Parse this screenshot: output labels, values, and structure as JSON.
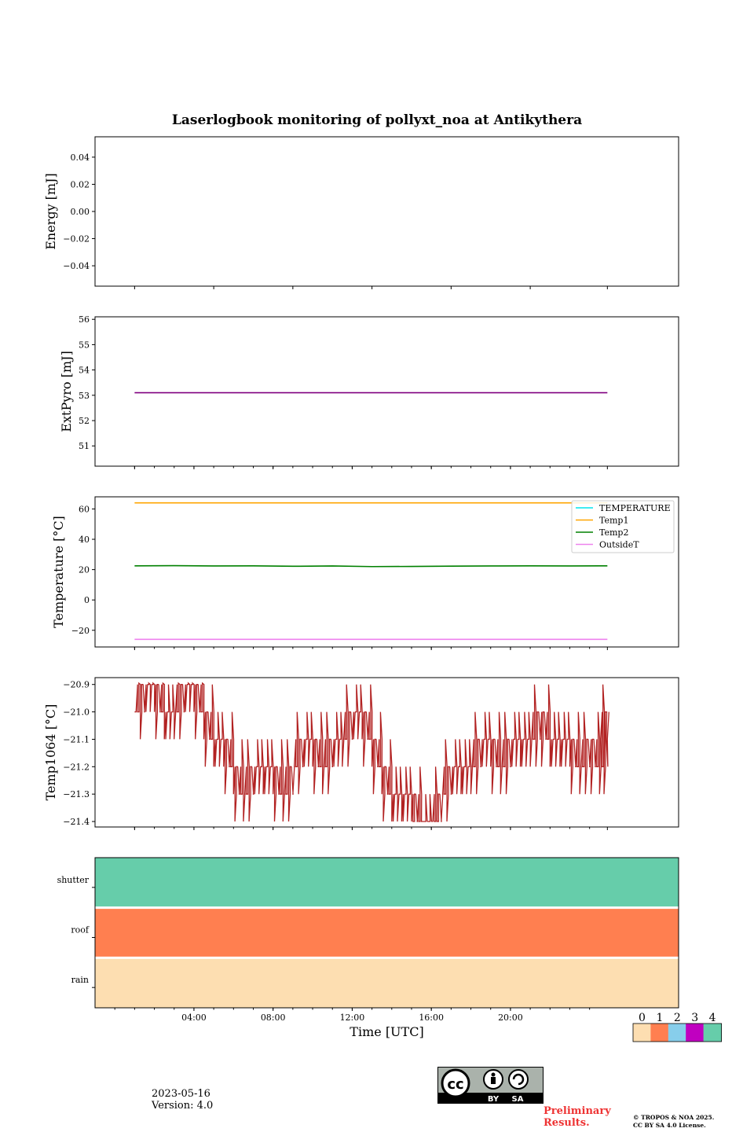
{
  "title": "Laserlogbook monitoring of pollyxt_noa at Antikythera",
  "footer": {
    "date": "2023-05-16",
    "version": "Version: 4.0",
    "preliminary_line1": "Preliminary",
    "preliminary_line2": "Results.",
    "copyright_line1": "© TROPOS & NOA 2025.",
    "copyright_line2": "CC BY SA 4.0 License.",
    "license_badge": {
      "by": "BY",
      "sa": "SA",
      "icon": "cc-by-sa-icon"
    }
  },
  "chart_data": [
    {
      "type": "line",
      "ylabel": "Energy [mJ]",
      "ylim": [
        -0.055,
        0.055
      ],
      "yticks": [
        0.04,
        0.02,
        0.0,
        -0.02,
        -0.04
      ],
      "ytick_labels": [
        "0.04",
        "0.02",
        "0.00",
        "−0.02",
        "−0.04"
      ],
      "x_range_hours": [
        0,
        24
      ],
      "series": []
    },
    {
      "type": "line",
      "ylabel": "ExtPyro [mJ]",
      "ylim": [
        50.2,
        56.1
      ],
      "yticks": [
        56,
        55,
        54,
        53,
        52,
        51
      ],
      "ytick_labels": [
        "56",
        "55",
        "54",
        "53",
        "52",
        "51"
      ],
      "x_range_hours": [
        0,
        24
      ],
      "series": [
        {
          "color": "#800080",
          "x": [
            1,
            24.9
          ],
          "values": [
            53.1,
            53.1
          ]
        }
      ]
    },
    {
      "type": "line",
      "ylabel": "Temperature [°C]",
      "ylim": [
        -31,
        68
      ],
      "yticks": [
        60,
        40,
        20,
        0,
        -20
      ],
      "ytick_labels": [
        "60",
        "40",
        "20",
        "0",
        "−20"
      ],
      "x_range_hours": [
        0,
        24
      ],
      "legend_position": "top-right",
      "series": [
        {
          "name": "TEMPERATURE",
          "color": "#00e5ee",
          "x": [],
          "values": []
        },
        {
          "name": "Temp1",
          "color": "#ffa500",
          "x": [
            1,
            24.9
          ],
          "values": [
            64,
            64
          ]
        },
        {
          "name": "Temp2",
          "color": "#008000",
          "x": [
            1,
            3,
            5,
            7,
            9,
            11,
            13,
            15,
            17,
            19,
            21,
            23,
            24.9
          ],
          "values": [
            22.5,
            22.6,
            22.4,
            22.5,
            22.2,
            22.4,
            22.0,
            22.1,
            22.3,
            22.4,
            22.5,
            22.4,
            22.5
          ]
        },
        {
          "name": "OutsideT",
          "color": "#ee82ee",
          "x": [
            1,
            24.9
          ],
          "values": [
            -26,
            -26
          ]
        }
      ]
    },
    {
      "type": "line",
      "ylabel": "Temp1064 [°C]",
      "ylim": [
        -21.42,
        -20.875
      ],
      "yticks": [
        -20.9,
        -21.0,
        -21.1,
        -21.2,
        -21.3,
        -21.4
      ],
      "ytick_labels": [
        "−20.9",
        "−21.0",
        "−21.1",
        "−21.2",
        "−21.3",
        "−21.4"
      ],
      "x_range_hours": [
        0,
        24
      ],
      "series": [
        {
          "color": "#b22222",
          "x": [
            1,
            1.5,
            2,
            2.5,
            3,
            3.5,
            4,
            4.5,
            5,
            5.5,
            6,
            6.5,
            7,
            7.5,
            8,
            8.5,
            9,
            9.5,
            10,
            10.5,
            11,
            11.5,
            12,
            12.5,
            13,
            13.5,
            14,
            14.5,
            15,
            15.5,
            16,
            16.5,
            17,
            17.5,
            18,
            18.5,
            19,
            19.5,
            20,
            20.5,
            21,
            21.5,
            22,
            22.5,
            23,
            23.5,
            24,
            24.5,
            24.9
          ],
          "values": [
            -21.0,
            -20.9,
            -20.9,
            -21.0,
            -21.0,
            -20.9,
            -20.9,
            -21.0,
            -21.1,
            -21.1,
            -21.2,
            -21.3,
            -21.2,
            -21.2,
            -21.2,
            -21.3,
            -21.2,
            -21.1,
            -21.1,
            -21.2,
            -21.1,
            -21.1,
            -21.0,
            -21.0,
            -21.1,
            -21.2,
            -21.3,
            -21.3,
            -21.3,
            -21.4,
            -21.4,
            -21.3,
            -21.2,
            -21.2,
            -21.2,
            -21.1,
            -21.1,
            -21.2,
            -21.1,
            -21.1,
            -21.1,
            -21.0,
            -21.1,
            -21.1,
            -21.1,
            -21.2,
            -21.1,
            -21.2,
            -21.0
          ]
        }
      ]
    },
    {
      "type": "heatmap",
      "xlabel": "Time [UTC]",
      "x_range_hours": [
        0,
        24
      ],
      "xticks": [
        4,
        8,
        12,
        16,
        20
      ],
      "xtick_labels": [
        "04:00",
        "08:00",
        "12:00",
        "16:00",
        "20:00"
      ],
      "rows": [
        {
          "label": "shutter",
          "value": 4
        },
        {
          "label": "roof",
          "value": 1
        },
        {
          "label": "rain",
          "value": 0
        }
      ],
      "colorbar": {
        "labels": [
          "0",
          "1",
          "2",
          "3",
          "4"
        ],
        "colors": [
          "#fddeb1",
          "#ff7f50",
          "#87ceeb",
          "#c000c0",
          "#66cdaa"
        ]
      }
    }
  ]
}
